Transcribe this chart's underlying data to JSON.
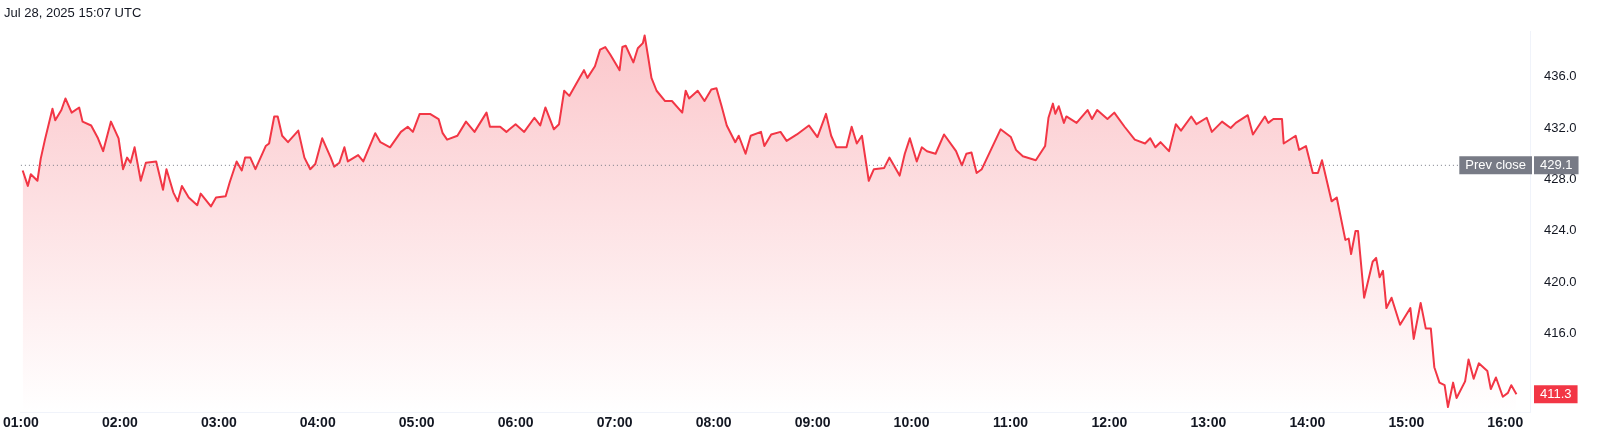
{
  "chart_data": {
    "type": "area",
    "title": "Jul 28, 2025 15:07 UTC",
    "x": [
      1.018,
      1.07,
      1.1,
      1.167,
      1.2,
      1.243,
      1.319,
      1.347,
      1.409,
      1.45,
      1.513,
      1.589,
      1.623,
      1.71,
      1.779,
      1.831,
      1.91,
      1.987,
      2.032,
      2.073,
      2.108,
      2.149,
      2.211,
      2.263,
      2.367,
      2.436,
      2.471,
      2.54,
      2.585,
      2.627,
      2.696,
      2.782,
      2.817,
      2.92,
      2.972,
      3.069,
      3.111,
      3.18,
      3.232,
      3.266,
      3.318,
      3.37,
      3.474,
      3.508,
      3.56,
      3.595,
      3.64,
      3.699,
      3.803,
      3.865,
      3.924,
      3.975,
      4.045,
      4.131,
      4.166,
      4.218,
      4.269,
      4.304,
      4.408,
      4.46,
      4.581,
      4.633,
      4.73,
      4.84,
      4.909,
      4.961,
      5.03,
      5.134,
      5.221,
      5.262,
      5.307,
      5.411,
      5.498,
      5.584,
      5.705,
      5.74,
      5.843,
      5.906,
      5.999,
      6.086,
      6.189,
      6.248,
      6.3,
      6.386,
      6.438,
      6.49,
      6.542,
      6.645,
      6.69,
      6.725,
      6.801,
      6.853,
      6.905,
      6.957,
      7.05,
      7.078,
      7.112,
      7.189,
      7.234,
      7.285,
      7.303,
      7.337,
      7.372,
      7.424,
      7.51,
      7.579,
      7.683,
      7.718,
      7.752,
      7.839,
      7.908,
      7.977,
      8.029,
      8.081,
      8.133,
      8.219,
      8.254,
      8.323,
      8.375,
      8.479,
      8.513,
      8.582,
      8.676,
      8.738,
      8.842,
      8.963,
      9.049,
      9.136,
      9.188,
      9.24,
      9.343,
      9.395,
      9.447,
      9.499,
      9.568,
      9.62,
      9.724,
      9.776,
      9.88,
      9.932,
      9.983,
      10.053,
      10.104,
      10.156,
      10.243,
      10.329,
      10.45,
      10.509,
      10.554,
      10.606,
      10.658,
      10.71,
      10.814,
      10.9,
      11.004,
      11.056,
      11.125,
      11.256,
      11.35,
      11.384,
      11.429,
      11.453,
      11.488,
      11.54,
      11.565,
      11.668,
      11.779,
      11.824,
      11.876,
      11.98,
      12.049,
      12.153,
      12.256,
      12.36,
      12.412,
      12.464,
      12.516,
      12.602,
      12.671,
      12.723,
      12.827,
      12.879,
      12.983,
      13.035,
      13.138,
      13.225,
      13.277,
      13.398,
      13.45,
      13.571,
      13.605,
      13.657,
      13.744,
      13.761,
      13.882,
      13.917,
      13.986,
      14.055,
      14.107,
      14.148,
      14.245,
      14.297,
      14.384,
      14.418,
      14.442,
      14.487,
      14.512,
      14.574,
      14.66,
      14.695,
      14.73,
      14.764,
      14.799,
      14.851,
      14.937,
      15.041,
      15.075,
      15.145,
      15.197,
      15.248,
      15.283,
      15.335,
      15.387,
      15.421,
      15.473,
      15.508,
      15.594,
      15.629,
      15.681,
      15.733,
      15.819,
      15.854,
      15.906,
      15.975,
      16.027,
      16.061,
      16.113
    ],
    "series": [
      {
        "color": "#f23645",
        "values": [
          428.7,
          427.5,
          428.4,
          427.9,
          429.6,
          431.1,
          433.5,
          432.6,
          433.4,
          434.3,
          433.2,
          433.6,
          432.5,
          432.2,
          431.2,
          430.2,
          432.5,
          431.2,
          428.8,
          429.7,
          429.3,
          430.5,
          427.9,
          429.3,
          429.4,
          427.2,
          428.8,
          427.0,
          426.3,
          427.5,
          426.6,
          426.0,
          426.9,
          425.9,
          426.6,
          426.7,
          427.8,
          429.4,
          428.7,
          429.7,
          429.7,
          428.8,
          430.6,
          430.8,
          432.9,
          432.9,
          431.4,
          430.9,
          431.8,
          429.7,
          428.8,
          429.2,
          431.2,
          429.7,
          429.0,
          429.3,
          430.5,
          429.4,
          429.9,
          429.4,
          431.6,
          430.9,
          430.5,
          431.7,
          432.1,
          431.7,
          433.1,
          433.1,
          432.7,
          431.6,
          431.1,
          431.4,
          432.5,
          431.7,
          433.2,
          432.1,
          432.1,
          431.7,
          432.3,
          431.7,
          432.8,
          432.2,
          433.6,
          431.9,
          432.3,
          434.9,
          434.5,
          435.9,
          436.5,
          435.9,
          436.8,
          438.1,
          438.3,
          437.7,
          436.5,
          438.3,
          438.4,
          437.1,
          438.2,
          438.6,
          439.2,
          437.6,
          435.9,
          434.9,
          434.1,
          434.1,
          433.2,
          434.9,
          434.3,
          434.9,
          434.1,
          435.0,
          435.1,
          433.7,
          432.2,
          430.9,
          431.4,
          430.0,
          431.4,
          431.7,
          430.6,
          431.5,
          431.7,
          431.0,
          431.5,
          432.2,
          431.3,
          433.1,
          431.4,
          430.5,
          430.5,
          432.1,
          430.8,
          431.4,
          427.9,
          428.8,
          428.9,
          429.7,
          428.3,
          430.0,
          431.2,
          429.4,
          430.5,
          430.2,
          430.0,
          431.5,
          430.2,
          429.1,
          430.0,
          430.1,
          428.5,
          428.8,
          430.5,
          431.9,
          431.3,
          430.3,
          429.8,
          429.5,
          430.6,
          432.8,
          433.9,
          433.1,
          433.7,
          432.4,
          432.9,
          432.4,
          433.4,
          432.7,
          433.4,
          432.7,
          433.2,
          432.1,
          431.1,
          430.8,
          431.2,
          430.5,
          430.9,
          430.2,
          432.3,
          431.8,
          432.9,
          432.3,
          432.8,
          431.7,
          432.5,
          432.0,
          432.4,
          433.0,
          431.5,
          432.9,
          432.4,
          432.7,
          432.7,
          430.8,
          431.4,
          430.3,
          430.6,
          428.5,
          428.5,
          429.5,
          426.3,
          426.6,
          423.3,
          423.4,
          422.2,
          424.0,
          424.0,
          418.8,
          421.6,
          421.9,
          420.4,
          420.9,
          418.0,
          418.8,
          416.7,
          418.0,
          415.6,
          418.4,
          416.4,
          416.4,
          413.4,
          412.2,
          412.0,
          410.3,
          412.2,
          411.0,
          412.3,
          414.0,
          412.5,
          413.7,
          413.1,
          411.7,
          412.6,
          411.1,
          411.4,
          412.0,
          411.3
        ]
      }
    ],
    "xlim": [
      1.0,
      16.25
    ],
    "xticks": [
      {
        "value": 1,
        "label": "01:00"
      },
      {
        "value": 2,
        "label": "02:00"
      },
      {
        "value": 3,
        "label": "03:00"
      },
      {
        "value": 4,
        "label": "04:00"
      },
      {
        "value": 5,
        "label": "05:00"
      },
      {
        "value": 6,
        "label": "06:00"
      },
      {
        "value": 7,
        "label": "07:00"
      },
      {
        "value": 8,
        "label": "08:00"
      },
      {
        "value": 9,
        "label": "09:00"
      },
      {
        "value": 10,
        "label": "10:00"
      },
      {
        "value": 11,
        "label": "11:00"
      },
      {
        "value": 12,
        "label": "12:00"
      },
      {
        "value": 13,
        "label": "13:00"
      },
      {
        "value": 14,
        "label": "14:00"
      },
      {
        "value": 15,
        "label": "15:00"
      },
      {
        "value": 16,
        "label": "16:00"
      }
    ],
    "ylim": [
      409.9,
      439.5
    ],
    "yticks": [
      {
        "value": 416,
        "label": "416.0"
      },
      {
        "value": 420,
        "label": "420.0"
      },
      {
        "value": 424,
        "label": "424.0"
      },
      {
        "value": 428,
        "label": "428.0"
      },
      {
        "value": 432,
        "label": "432.0"
      },
      {
        "value": 436,
        "label": "436.0"
      }
    ],
    "ref_lines": [
      {
        "axis": "y",
        "value": 429.1,
        "label": "Prev close",
        "color": "#787b86",
        "line_style": "dotted"
      }
    ],
    "annotations": [
      "429.1",
      {
        "text": "411.3",
        "x": 16.113,
        "y": 411.3
      }
    ],
    "grid": false,
    "legend": false,
    "marker": "none",
    "line_style": "solid"
  }
}
